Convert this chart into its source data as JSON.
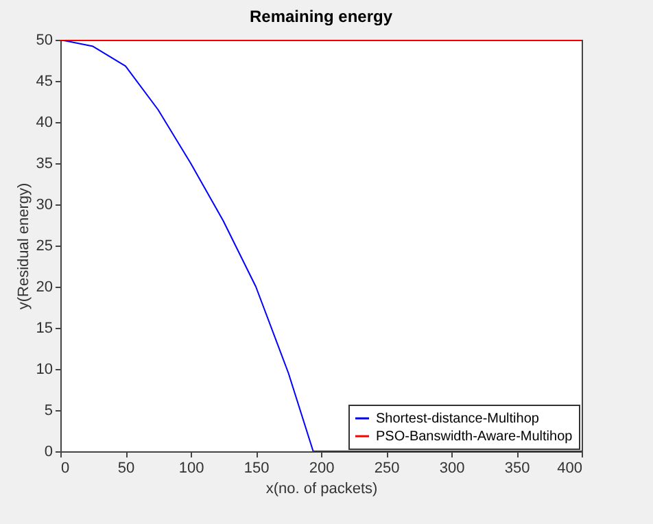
{
  "chart_data": {
    "type": "line",
    "title": "Remaining energy",
    "xlabel": "x(no. of packets)",
    "ylabel": "y(Residual energy)",
    "series": [
      {
        "name": "Shortest-distance-Multihop",
        "color": "#0000ff",
        "x": [
          0,
          25,
          50,
          75,
          100,
          125,
          150,
          175,
          194,
          195,
          250,
          300,
          350,
          400
        ],
        "values": [
          50,
          49.2,
          46.8,
          41.5,
          35,
          28,
          20,
          9.5,
          0,
          0,
          0,
          0,
          0,
          0
        ]
      },
      {
        "name": "PSO-Banswidth-Aware-Multihop",
        "color": "#ff0000",
        "x": [
          0,
          400
        ],
        "values": [
          50,
          50
        ]
      }
    ],
    "xlim": [
      0,
      400
    ],
    "xticks": [
      0,
      50,
      100,
      150,
      200,
      250,
      300,
      350,
      400
    ],
    "ylim": [
      0,
      50
    ],
    "yticks": [
      0,
      5,
      10,
      15,
      20,
      25,
      30,
      35,
      40,
      45,
      50
    ],
    "grid": false,
    "legend": "bottom right",
    "marker": "none",
    "line_style": "solid"
  }
}
